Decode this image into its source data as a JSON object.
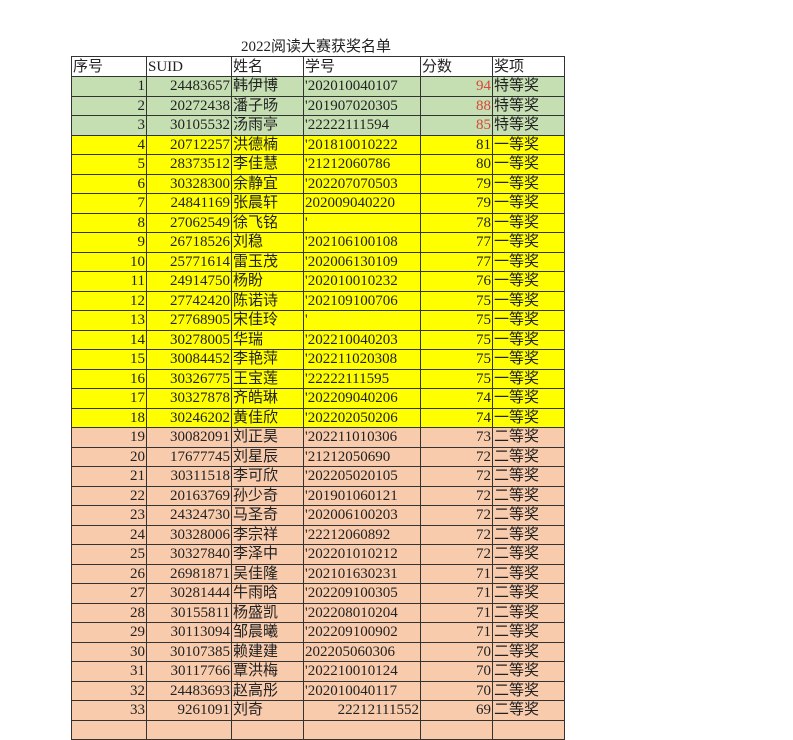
{
  "title": "2022阅读大赛获奖名单",
  "headers": [
    "序号",
    "SUID",
    "姓名",
    "学号",
    "分数",
    "奖项"
  ],
  "colors": {
    "special": "#c5dfb3",
    "first": "#ffff00",
    "second": "#f8cbad",
    "top_score_text": "#d9463a"
  },
  "rows": [
    {
      "no": "1",
      "suid": "24483657",
      "name": "韩伊博",
      "sid": "'202010040107",
      "score": "94",
      "award": "特等奖",
      "tier": "special"
    },
    {
      "no": "2",
      "suid": "20272438",
      "name": "潘子旸",
      "sid": "'201907020305",
      "score": "88",
      "award": "特等奖",
      "tier": "special"
    },
    {
      "no": "3",
      "suid": "30105532",
      "name": "汤雨亭",
      "sid": "'22222111594",
      "score": "85",
      "award": "特等奖",
      "tier": "special"
    },
    {
      "no": "4",
      "suid": "20712257",
      "name": "洪德楠",
      "sid": "'201810010222",
      "score": "81",
      "award": "一等奖",
      "tier": "first"
    },
    {
      "no": "5",
      "suid": "28373512",
      "name": "李佳慧",
      "sid": "'21212060786",
      "score": "80",
      "award": "一等奖",
      "tier": "first"
    },
    {
      "no": "6",
      "suid": "30328300",
      "name": "余静宜",
      "sid": "'202207070503",
      "score": "79",
      "award": "一等奖",
      "tier": "first"
    },
    {
      "no": "7",
      "suid": "24841169",
      "name": "张晨轩",
      "sid": "202009040220",
      "score": "79",
      "award": "一等奖",
      "tier": "first"
    },
    {
      "no": "8",
      "suid": "27062549",
      "name": "徐飞铭",
      "sid": "'",
      "score": "78",
      "award": "一等奖",
      "tier": "first"
    },
    {
      "no": "9",
      "suid": "26718526",
      "name": "刘稳",
      "sid": "'202106100108",
      "score": "77",
      "award": "一等奖",
      "tier": "first"
    },
    {
      "no": "10",
      "suid": "25771614",
      "name": "雷玉茂",
      "sid": "'202006130109",
      "score": "77",
      "award": "一等奖",
      "tier": "first"
    },
    {
      "no": "11",
      "suid": "24914750",
      "name": "杨盼",
      "sid": "'202010010232",
      "score": "76",
      "award": "一等奖",
      "tier": "first"
    },
    {
      "no": "12",
      "suid": "27742420",
      "name": "陈诺诗",
      "sid": "'202109100706",
      "score": "75",
      "award": "一等奖",
      "tier": "first"
    },
    {
      "no": "13",
      "suid": "27768905",
      "name": "宋佳玲",
      "sid": "'",
      "score": "75",
      "award": "一等奖",
      "tier": "first"
    },
    {
      "no": "14",
      "suid": "30278005",
      "name": "华瑞",
      "sid": "'202210040203",
      "score": "75",
      "award": "一等奖",
      "tier": "first"
    },
    {
      "no": "15",
      "suid": "30084452",
      "name": "李艳萍",
      "sid": "'202211020308",
      "score": "75",
      "award": "一等奖",
      "tier": "first"
    },
    {
      "no": "16",
      "suid": "30326775",
      "name": "王宝莲",
      "sid": "'22222111595",
      "score": "75",
      "award": "一等奖",
      "tier": "first"
    },
    {
      "no": "17",
      "suid": "30327878",
      "name": "齐皓琳",
      "sid": "'202209040206",
      "score": "74",
      "award": "一等奖",
      "tier": "first"
    },
    {
      "no": "18",
      "suid": "30246202",
      "name": "黄佳欣",
      "sid": "'202202050206",
      "score": "74",
      "award": "一等奖",
      "tier": "first"
    },
    {
      "no": "19",
      "suid": "30082091",
      "name": "刘正昊",
      "sid": "'202211010306",
      "score": "73",
      "award": "二等奖",
      "tier": "second"
    },
    {
      "no": "20",
      "suid": "17677745",
      "name": "刘星辰",
      "sid": "'21212050690",
      "score": "72",
      "award": "二等奖",
      "tier": "second"
    },
    {
      "no": "21",
      "suid": "30311518",
      "name": "李可欣",
      "sid": "'202205020105",
      "score": "72",
      "award": "二等奖",
      "tier": "second"
    },
    {
      "no": "22",
      "suid": "20163769",
      "name": "孙少奇",
      "sid": "'201901060121",
      "score": "72",
      "award": "二等奖",
      "tier": "second"
    },
    {
      "no": "23",
      "suid": "24324730",
      "name": "马圣奇",
      "sid": "'202006100203",
      "score": "72",
      "award": "二等奖",
      "tier": "second"
    },
    {
      "no": "24",
      "suid": "30328006",
      "name": "李宗祥",
      "sid": "'22212060892",
      "score": "72",
      "award": "二等奖",
      "tier": "second"
    },
    {
      "no": "25",
      "suid": "30327840",
      "name": "李泽中",
      "sid": "'202201010212",
      "score": "72",
      "award": "二等奖",
      "tier": "second"
    },
    {
      "no": "26",
      "suid": "26981871",
      "name": "吴佳隆",
      "sid": "'202101630231",
      "score": "71",
      "award": "二等奖",
      "tier": "second"
    },
    {
      "no": "27",
      "suid": "30281444",
      "name": "牛雨晗",
      "sid": "'202209100305",
      "score": "71",
      "award": "二等奖",
      "tier": "second"
    },
    {
      "no": "28",
      "suid": "30155811",
      "name": "杨盛凯",
      "sid": "'202208010204",
      "score": "71",
      "award": "二等奖",
      "tier": "second"
    },
    {
      "no": "29",
      "suid": "30113094",
      "name": "邹晨曦",
      "sid": "'202209100902",
      "score": "71",
      "award": "二等奖",
      "tier": "second"
    },
    {
      "no": "30",
      "suid": "30107385",
      "name": "赖建建",
      "sid": "202205060306",
      "score": "70",
      "award": "二等奖",
      "tier": "second"
    },
    {
      "no": "31",
      "suid": "30117766",
      "name": "覃洪梅",
      "sid": "'202210010124",
      "score": "70",
      "award": "二等奖",
      "tier": "second"
    },
    {
      "no": "32",
      "suid": "24483693",
      "name": "赵高彤",
      "sid": "'202010040117",
      "score": "70",
      "award": "二等奖",
      "tier": "second"
    },
    {
      "no": "33",
      "suid": "9261091",
      "name": "刘奇",
      "sid": "22212111552",
      "score": "69",
      "award": "二等奖",
      "tier": "second",
      "sid_align": "right"
    }
  ]
}
